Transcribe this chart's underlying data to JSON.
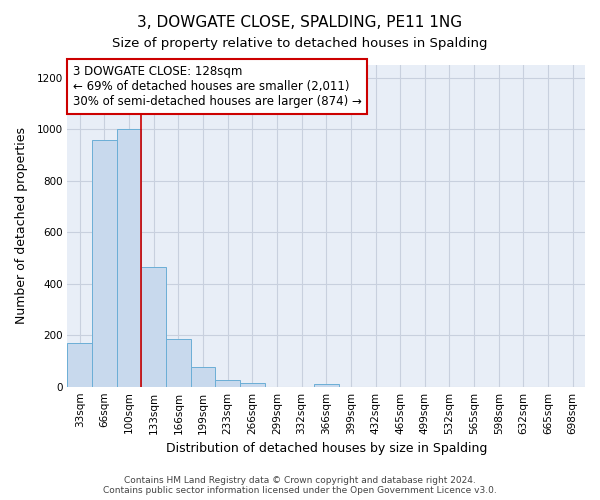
{
  "title": "3, DOWGATE CLOSE, SPALDING, PE11 1NG",
  "subtitle": "Size of property relative to detached houses in Spalding",
  "xlabel": "Distribution of detached houses by size in Spalding",
  "ylabel": "Number of detached properties",
  "bar_labels": [
    "33sqm",
    "66sqm",
    "100sqm",
    "133sqm",
    "166sqm",
    "199sqm",
    "233sqm",
    "266sqm",
    "299sqm",
    "332sqm",
    "366sqm",
    "399sqm",
    "432sqm",
    "465sqm",
    "499sqm",
    "532sqm",
    "565sqm",
    "598sqm",
    "632sqm",
    "665sqm",
    "698sqm"
  ],
  "bar_values": [
    170,
    960,
    1000,
    465,
    185,
    75,
    25,
    15,
    0,
    0,
    10,
    0,
    0,
    0,
    0,
    0,
    0,
    0,
    0,
    0,
    0
  ],
  "bar_color": "#c8d9ed",
  "bar_edge_color": "#6baed6",
  "vline_color": "#cc0000",
  "annotation_text": "3 DOWGATE CLOSE: 128sqm\n← 69% of detached houses are smaller (2,011)\n30% of semi-detached houses are larger (874) →",
  "annotation_box_edgecolor": "#cc0000",
  "annotation_box_facecolor": "white",
  "ylim": [
    0,
    1250
  ],
  "yticks": [
    0,
    200,
    400,
    600,
    800,
    1000,
    1200
  ],
  "footer_line1": "Contains HM Land Registry data © Crown copyright and database right 2024.",
  "footer_line2": "Contains public sector information licensed under the Open Government Licence v3.0.",
  "bg_color": "#ffffff",
  "plot_bg_color": "#e8eef7",
  "grid_color": "#c8d0de",
  "title_fontsize": 11,
  "subtitle_fontsize": 9.5,
  "axis_label_fontsize": 9,
  "tick_fontsize": 7.5,
  "annotation_fontsize": 8.5,
  "footer_fontsize": 6.5
}
